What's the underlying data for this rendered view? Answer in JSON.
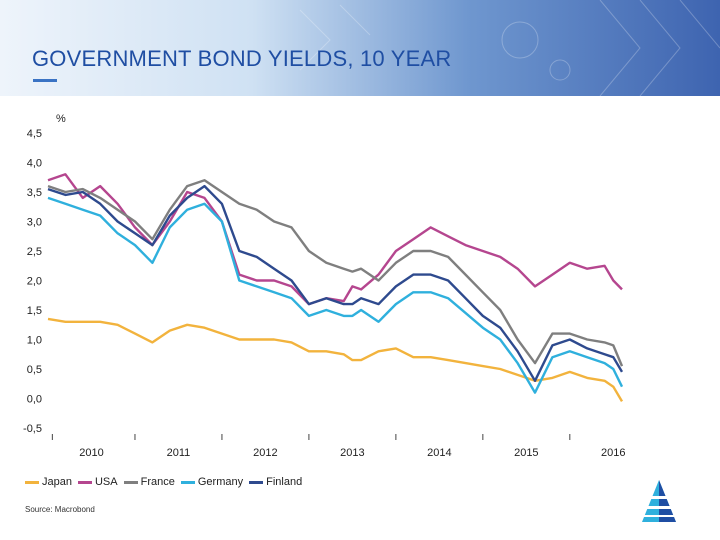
{
  "header": {
    "title": "GOVERNMENT BOND YIELDS, 10 YEAR"
  },
  "footer": {
    "source": "Source: Macrobond"
  },
  "colors": {
    "accent": "#1f4ea3",
    "Japan": "#f2b33d",
    "USA": "#b5468f",
    "France": "#7f7f7f",
    "Germany": "#2fb0dd",
    "Finland": "#2e4a8e"
  },
  "chart_data": {
    "type": "line",
    "unit_label": "%",
    "ylim": [
      -0.5,
      4.5
    ],
    "y_ticks": [
      4.5,
      4.0,
      3.5,
      3.0,
      2.5,
      2.0,
      1.5,
      1.0,
      0.5,
      0.0,
      -0.5
    ],
    "y_tick_labels": [
      "4,5",
      "4,0",
      "3,5",
      "3,0",
      "2,5",
      "2,0",
      "1,5",
      "1,0",
      "0,5",
      "0,0",
      "-0,5"
    ],
    "xlim": [
      2009.5,
      2016.1
    ],
    "x_ticks": [
      2010,
      2011,
      2012,
      2013,
      2014,
      2015,
      2016
    ],
    "x_tick_labels": [
      "2010",
      "2011",
      "2012",
      "2013",
      "2014",
      "2015",
      "2016"
    ],
    "grid": false,
    "legend_position": "bottom-left",
    "series": [
      {
        "name": "Japan",
        "x": [
          2009.5,
          2009.7,
          2009.9,
          2010.1,
          2010.3,
          2010.5,
          2010.7,
          2010.9,
          2011.1,
          2011.3,
          2011.5,
          2011.7,
          2011.9,
          2012.1,
          2012.3,
          2012.5,
          2012.7,
          2012.9,
          2013.0,
          2013.1,
          2013.3,
          2013.5,
          2013.7,
          2013.9,
          2014.1,
          2014.3,
          2014.5,
          2014.7,
          2014.9,
          2015.1,
          2015.3,
          2015.5,
          2015.7,
          2015.9,
          2016.0,
          2016.1
        ],
        "values": [
          1.35,
          1.3,
          1.3,
          1.3,
          1.25,
          1.1,
          0.95,
          1.15,
          1.25,
          1.2,
          1.1,
          1.0,
          1.0,
          1.0,
          0.95,
          0.8,
          0.8,
          0.75,
          0.65,
          0.65,
          0.8,
          0.85,
          0.7,
          0.7,
          0.65,
          0.6,
          0.55,
          0.5,
          0.4,
          0.3,
          0.35,
          0.45,
          0.35,
          0.3,
          0.2,
          -0.05
        ]
      },
      {
        "name": "USA",
        "x": [
          2009.5,
          2009.7,
          2009.9,
          2010.1,
          2010.3,
          2010.5,
          2010.7,
          2010.9,
          2011.1,
          2011.3,
          2011.5,
          2011.7,
          2011.9,
          2012.1,
          2012.3,
          2012.5,
          2012.7,
          2012.9,
          2013.0,
          2013.1,
          2013.3,
          2013.5,
          2013.7,
          2013.9,
          2014.1,
          2014.3,
          2014.5,
          2014.7,
          2014.9,
          2015.1,
          2015.3,
          2015.5,
          2015.7,
          2015.9,
          2016.0,
          2016.1
        ],
        "values": [
          3.7,
          3.8,
          3.4,
          3.6,
          3.3,
          2.9,
          2.6,
          3.0,
          3.5,
          3.4,
          3.0,
          2.1,
          2.0,
          2.0,
          1.9,
          1.6,
          1.7,
          1.65,
          1.9,
          1.85,
          2.1,
          2.5,
          2.7,
          2.9,
          2.75,
          2.6,
          2.5,
          2.4,
          2.2,
          1.9,
          2.1,
          2.3,
          2.2,
          2.25,
          2.0,
          1.85
        ]
      },
      {
        "name": "France",
        "x": [
          2009.5,
          2009.7,
          2009.9,
          2010.1,
          2010.3,
          2010.5,
          2010.7,
          2010.9,
          2011.1,
          2011.3,
          2011.5,
          2011.7,
          2011.9,
          2012.1,
          2012.3,
          2012.5,
          2012.7,
          2012.9,
          2013.0,
          2013.1,
          2013.3,
          2013.5,
          2013.7,
          2013.9,
          2014.1,
          2014.3,
          2014.5,
          2014.7,
          2014.9,
          2015.1,
          2015.3,
          2015.5,
          2015.7,
          2015.9,
          2016.0,
          2016.1
        ],
        "values": [
          3.6,
          3.5,
          3.55,
          3.4,
          3.2,
          3.0,
          2.7,
          3.2,
          3.6,
          3.7,
          3.5,
          3.3,
          3.2,
          3.0,
          2.9,
          2.5,
          2.3,
          2.2,
          2.15,
          2.2,
          2.0,
          2.3,
          2.5,
          2.5,
          2.4,
          2.1,
          1.8,
          1.5,
          1.0,
          0.6,
          1.1,
          1.1,
          1.0,
          0.95,
          0.9,
          0.55
        ]
      },
      {
        "name": "Germany",
        "x": [
          2009.5,
          2009.7,
          2009.9,
          2010.1,
          2010.3,
          2010.5,
          2010.7,
          2010.9,
          2011.1,
          2011.3,
          2011.5,
          2011.7,
          2011.9,
          2012.1,
          2012.3,
          2012.5,
          2012.7,
          2012.9,
          2013.0,
          2013.1,
          2013.3,
          2013.5,
          2013.7,
          2013.9,
          2014.1,
          2014.3,
          2014.5,
          2014.7,
          2014.9,
          2015.1,
          2015.3,
          2015.5,
          2015.7,
          2015.9,
          2016.0,
          2016.1
        ],
        "values": [
          3.4,
          3.3,
          3.2,
          3.1,
          2.8,
          2.6,
          2.3,
          2.9,
          3.2,
          3.3,
          3.0,
          2.0,
          1.9,
          1.8,
          1.7,
          1.4,
          1.5,
          1.4,
          1.4,
          1.5,
          1.3,
          1.6,
          1.8,
          1.8,
          1.7,
          1.45,
          1.2,
          1.0,
          0.6,
          0.1,
          0.7,
          0.8,
          0.7,
          0.6,
          0.5,
          0.2
        ]
      },
      {
        "name": "Finland",
        "x": [
          2009.5,
          2009.7,
          2009.9,
          2010.1,
          2010.3,
          2010.5,
          2010.7,
          2010.9,
          2011.1,
          2011.3,
          2011.5,
          2011.7,
          2011.9,
          2012.1,
          2012.3,
          2012.5,
          2012.7,
          2012.9,
          2013.0,
          2013.1,
          2013.3,
          2013.5,
          2013.7,
          2013.9,
          2014.1,
          2014.3,
          2014.5,
          2014.7,
          2014.9,
          2015.1,
          2015.3,
          2015.5,
          2015.7,
          2015.9,
          2016.0,
          2016.1
        ],
        "values": [
          3.55,
          3.45,
          3.5,
          3.3,
          3.0,
          2.8,
          2.6,
          3.1,
          3.4,
          3.6,
          3.3,
          2.5,
          2.4,
          2.2,
          2.0,
          1.6,
          1.7,
          1.6,
          1.6,
          1.7,
          1.6,
          1.9,
          2.1,
          2.1,
          2.0,
          1.7,
          1.4,
          1.2,
          0.8,
          0.3,
          0.9,
          1.0,
          0.85,
          0.75,
          0.7,
          0.45
        ]
      }
    ]
  }
}
